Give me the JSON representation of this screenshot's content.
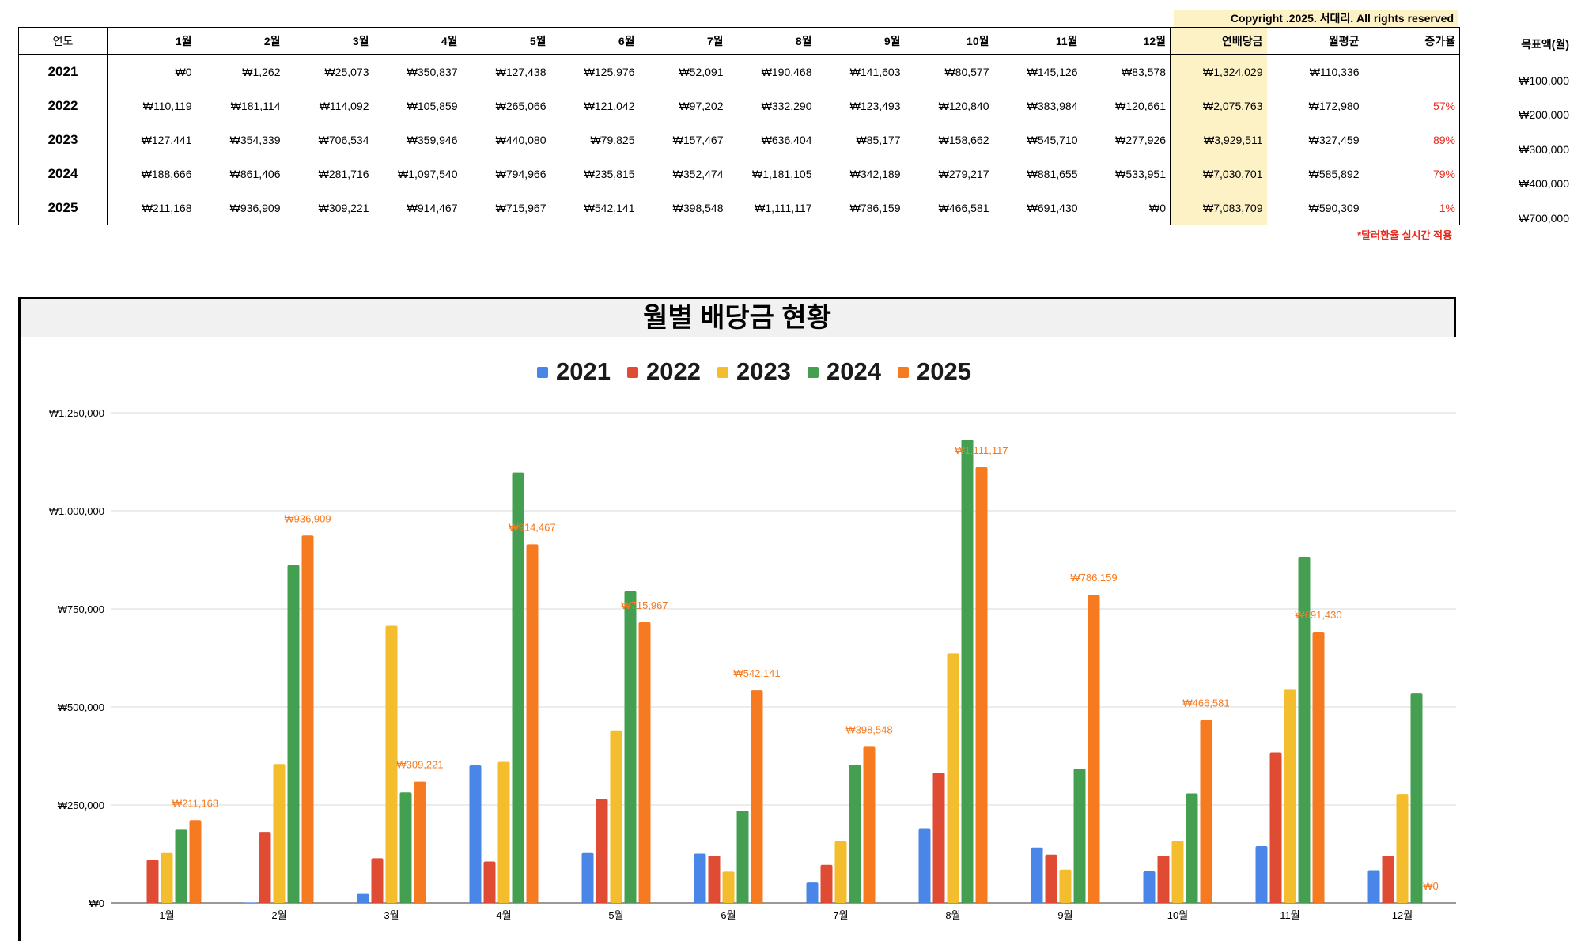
{
  "copyright": "Copyright .2025. 서대리. All rights reserved",
  "table": {
    "year_header": "연도",
    "month_headers": [
      "1월",
      "2월",
      "3월",
      "4월",
      "5월",
      "6월",
      "7월",
      "8월",
      "9월",
      "10월",
      "11월",
      "12월"
    ],
    "sum_header": "연배당금",
    "avg_header": "월평균",
    "increase_header": "증가율",
    "rows": [
      {
        "year": "2021",
        "months": [
          "₩0",
          "₩1,262",
          "₩25,073",
          "₩350,837",
          "₩127,438",
          "₩125,976",
          "₩52,091",
          "₩190,468",
          "₩141,603",
          "₩80,577",
          "₩145,126",
          "₩83,578"
        ],
        "sum": "₩1,324,029",
        "avg": "₩110,336",
        "increase": ""
      },
      {
        "year": "2022",
        "months": [
          "₩110,119",
          "₩181,114",
          "₩114,092",
          "₩105,859",
          "₩265,066",
          "₩121,042",
          "₩97,202",
          "₩332,290",
          "₩123,493",
          "₩120,840",
          "₩383,984",
          "₩120,661"
        ],
        "sum": "₩2,075,763",
        "avg": "₩172,980",
        "increase": "57%"
      },
      {
        "year": "2023",
        "months": [
          "₩127,441",
          "₩354,339",
          "₩706,534",
          "₩359,946",
          "₩440,080",
          "₩79,825",
          "₩157,467",
          "₩636,404",
          "₩85,177",
          "₩158,662",
          "₩545,710",
          "₩277,926"
        ],
        "sum": "₩3,929,511",
        "avg": "₩327,459",
        "increase": "89%"
      },
      {
        "year": "2024",
        "months": [
          "₩188,666",
          "₩861,406",
          "₩281,716",
          "₩1,097,540",
          "₩794,966",
          "₩235,815",
          "₩352,474",
          "₩1,181,105",
          "₩342,189",
          "₩279,217",
          "₩881,655",
          "₩533,951"
        ],
        "sum": "₩7,030,701",
        "avg": "₩585,892",
        "increase": "79%"
      },
      {
        "year": "2025",
        "months": [
          "₩211,168",
          "₩936,909",
          "₩309,221",
          "₩914,467",
          "₩715,967",
          "₩542,141",
          "₩398,548",
          "₩1,111,117",
          "₩786,159",
          "₩466,581",
          "₩691,430",
          "₩0"
        ],
        "sum": "₩7,083,709",
        "avg": "₩590,309",
        "increase": "1%"
      }
    ]
  },
  "goal": {
    "header": "목표액(월)",
    "values": [
      "₩100,000",
      "₩200,000",
      "₩300,000",
      "₩400,000",
      "₩700,000"
    ]
  },
  "note": "*달러환율 실시간 적용",
  "chart_data": {
    "type": "bar",
    "title": "월별 배당금 현황",
    "categories": [
      "1월",
      "2월",
      "3월",
      "4월",
      "5월",
      "6월",
      "7월",
      "8월",
      "9월",
      "10월",
      "11월",
      "12월"
    ],
    "series": [
      {
        "name": "2021",
        "color": "#4a86e8",
        "values": [
          0,
          1262,
          25073,
          350837,
          127438,
          125976,
          52091,
          190468,
          141603,
          80577,
          145126,
          83578
        ]
      },
      {
        "name": "2022",
        "color": "#e04b33",
        "values": [
          110119,
          181114,
          114092,
          105859,
          265066,
          121042,
          97202,
          332290,
          123493,
          120840,
          383984,
          120661
        ]
      },
      {
        "name": "2023",
        "color": "#f4bd2d",
        "values": [
          127441,
          354339,
          706534,
          359946,
          440080,
          79825,
          157467,
          636404,
          85177,
          158662,
          545710,
          277926
        ]
      },
      {
        "name": "2024",
        "color": "#44a050",
        "values": [
          188666,
          861406,
          281716,
          1097540,
          794966,
          235815,
          352474,
          1181105,
          342189,
          279217,
          881655,
          533951
        ]
      },
      {
        "name": "2025",
        "color": "#f57a20",
        "values": [
          211168,
          936909,
          309221,
          914467,
          715967,
          542141,
          398548,
          1111117,
          786159,
          466581,
          691430,
          0
        ]
      }
    ],
    "data_labels_series": "2025",
    "data_labels": [
      "₩211,168",
      "₩936,909",
      "₩309,221",
      "₩914,467",
      "₩715,967",
      "₩542,141",
      "₩398,548",
      "₩1,111,117",
      "₩786,159",
      "₩466,581",
      "₩691,430",
      "₩0"
    ],
    "ylim": [
      0,
      1250000
    ],
    "yticks": [
      0,
      250000,
      500000,
      750000,
      1000000,
      1250000
    ],
    "ytick_labels": [
      "₩0",
      "₩250,000",
      "₩500,000",
      "₩750,000",
      "₩1,000,000",
      "₩1,250,000"
    ],
    "legend_position": "top",
    "grid": true
  }
}
